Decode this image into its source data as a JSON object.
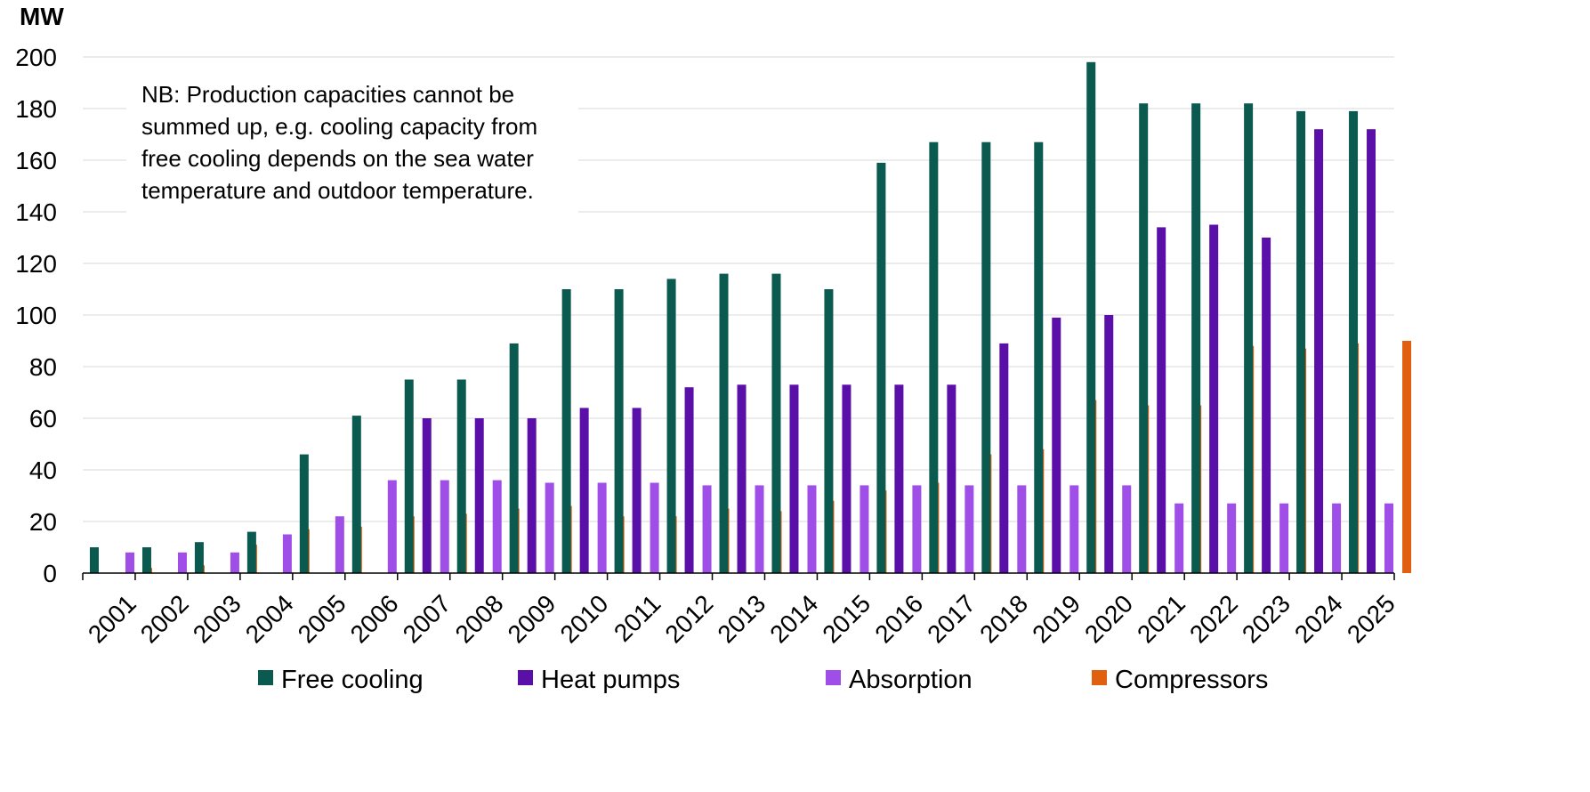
{
  "chart_data": {
    "type": "bar",
    "unit_label": "MW",
    "categories": [
      "2001",
      "2002",
      "2003",
      "2004",
      "2005",
      "2006",
      "2007",
      "2008",
      "2009",
      "2010",
      "2011",
      "2012",
      "2013",
      "2014",
      "2015",
      "2016",
      "2017",
      "2018",
      "2019",
      "2020",
      "2021",
      "2022",
      "2023",
      "2024",
      "2025"
    ],
    "series": [
      {
        "name": "Free cooling",
        "color": "#0b5a4f",
        "values": [
          10,
          10,
          12,
          16,
          46,
          61,
          75,
          75,
          89,
          110,
          110,
          114,
          116,
          116,
          110,
          159,
          167,
          167,
          167,
          198,
          182,
          182,
          182,
          179,
          179
        ]
      },
      {
        "name": "Heat pumps",
        "color": "#5a0fa8",
        "values": [
          0,
          0,
          0,
          0,
          0,
          0,
          60,
          60,
          60,
          64,
          64,
          72,
          73,
          73,
          73,
          73,
          73,
          89,
          99,
          100,
          134,
          135,
          130,
          172,
          172
        ]
      },
      {
        "name": "Absorption",
        "color": "#a04ee8",
        "values": [
          8,
          8,
          8,
          15,
          22,
          36,
          36,
          36,
          35,
          35,
          35,
          34,
          34,
          34,
          34,
          34,
          34,
          34,
          34,
          34,
          27,
          27,
          27,
          27,
          27
        ]
      },
      {
        "name": "Compressors",
        "color": "#e06010",
        "values": [
          2,
          3,
          11,
          17,
          18,
          22,
          23,
          25,
          26,
          22,
          22,
          25,
          24,
          28,
          32,
          35,
          46,
          48,
          67,
          65,
          65,
          88,
          87,
          89,
          90
        ]
      }
    ],
    "ylim": [
      0,
      200
    ],
    "yticks": [
      0,
      20,
      40,
      60,
      80,
      100,
      120,
      140,
      160,
      180,
      200
    ],
    "grid": true,
    "legend_position": "bottom",
    "annotation": [
      "NB: Production capacities cannot be",
      "summed up, e.g. cooling capacity from",
      "free cooling depends on the sea water",
      "temperature and outdoor temperature."
    ]
  }
}
